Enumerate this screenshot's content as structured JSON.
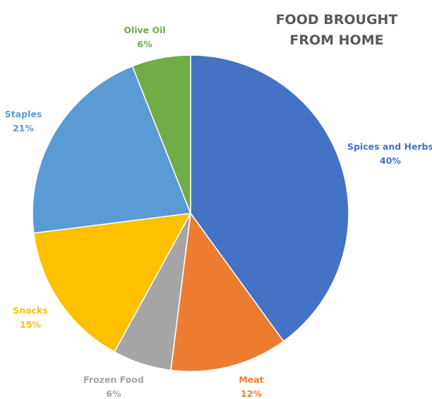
{
  "chart_data": {
    "type": "pie",
    "title_lines": [
      "FOOD BROUGHT",
      "FROM HOME"
    ],
    "slices": [
      {
        "name": "Spices and Herbs",
        "value": 40,
        "label": "40%",
        "color": "#4472C4"
      },
      {
        "name": "Meat",
        "value": 12,
        "label": "12%",
        "color": "#ED7D31"
      },
      {
        "name": "Frozen Food",
        "value": 6,
        "label": "6%",
        "color": "#A5A5A5"
      },
      {
        "name": "Snacks",
        "value": 15,
        "label": "15%",
        "color": "#FFC000"
      },
      {
        "name": "Staples",
        "value": 21,
        "label": "21%",
        "color": "#5B9BD5"
      },
      {
        "name": "Olive Oil",
        "value": 6,
        "label": "6%",
        "color": "#70AD47"
      }
    ],
    "start_angle_deg": 0,
    "direction": "clockwise",
    "legend": "none"
  }
}
